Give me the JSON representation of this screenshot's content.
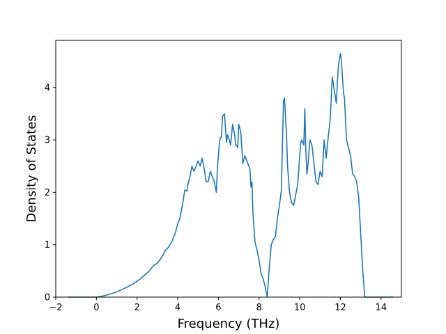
{
  "chart_data": {
    "type": "line",
    "title": "",
    "xlabel": "Frequency (THz)",
    "ylabel": "Density of States",
    "xlim": [
      -2.0,
      15.0
    ],
    "ylim": [
      0,
      4.9
    ],
    "xticks": [
      -2,
      0,
      2,
      4,
      6,
      8,
      10,
      12,
      14
    ],
    "yticks": [
      0,
      1,
      2,
      3,
      4
    ],
    "grid": false,
    "legend": "none",
    "color": "#1f77b4",
    "series": [
      {
        "x": [
          -1.4,
          -1.0,
          -0.5,
          0.0,
          0.3,
          0.6,
          1.0,
          1.4,
          1.8,
          2.2,
          2.6,
          2.8,
          3.0,
          3.2,
          3.4,
          3.5,
          3.7,
          3.8,
          3.9,
          4.0,
          4.1,
          4.15,
          4.25,
          4.35,
          4.45,
          4.5,
          4.6,
          4.7,
          4.8,
          4.9,
          5.0,
          5.1,
          5.2,
          5.3,
          5.4,
          5.5,
          5.6,
          5.7,
          5.8,
          5.9,
          5.95,
          6.0,
          6.05,
          6.1,
          6.15,
          6.2,
          6.3,
          6.4,
          6.45,
          6.5,
          6.6,
          6.7,
          6.8,
          6.85,
          6.9,
          6.95,
          7.0,
          7.1,
          7.2,
          7.3,
          7.4,
          7.5,
          7.55,
          7.6,
          7.65,
          7.7,
          7.8,
          7.9,
          8.0,
          8.1,
          8.2,
          8.3,
          8.4,
          8.5,
          8.6,
          8.7,
          8.8,
          8.9,
          9.0,
          9.1,
          9.2,
          9.25,
          9.35,
          9.4,
          9.5,
          9.6,
          9.7,
          9.8,
          9.9,
          10.0,
          10.05,
          10.1,
          10.2,
          10.25,
          10.3,
          10.35,
          10.4,
          10.5,
          10.6,
          10.7,
          10.8,
          10.9,
          11.0,
          11.1,
          11.2,
          11.3,
          11.4,
          11.5,
          11.6,
          11.7,
          11.8,
          11.85,
          11.9,
          11.95,
          12.0,
          12.05,
          12.1,
          12.15,
          12.2,
          12.3,
          12.4,
          12.5,
          12.6,
          12.7,
          12.8,
          12.9,
          13.0,
          13.1,
          13.2,
          13.3,
          13.6,
          14.0,
          14.6
        ],
        "values": [
          0.0,
          0.0,
          0.0,
          0.0,
          0.02,
          0.05,
          0.1,
          0.17,
          0.25,
          0.36,
          0.5,
          0.6,
          0.65,
          0.75,
          0.9,
          0.93,
          1.05,
          1.15,
          1.25,
          1.4,
          1.5,
          1.6,
          1.8,
          2.05,
          2.02,
          2.15,
          2.3,
          2.5,
          2.4,
          2.5,
          2.6,
          2.5,
          2.65,
          2.45,
          2.2,
          2.2,
          2.4,
          2.3,
          2.2,
          2.0,
          2.45,
          2.7,
          2.95,
          3.05,
          3.05,
          3.45,
          3.5,
          2.95,
          3.1,
          3.05,
          2.9,
          3.3,
          3.1,
          2.9,
          2.9,
          2.85,
          3.3,
          3.15,
          2.55,
          2.7,
          2.6,
          2.5,
          2.45,
          2.1,
          2.2,
          1.6,
          1.05,
          0.9,
          0.7,
          0.45,
          0.35,
          0.2,
          0.0,
          0.55,
          1.0,
          1.1,
          1.15,
          1.5,
          1.75,
          2.05,
          3.75,
          3.8,
          3.1,
          2.5,
          2.0,
          1.8,
          1.75,
          1.95,
          2.15,
          2.7,
          2.95,
          3.0,
          2.9,
          3.6,
          2.8,
          2.35,
          2.5,
          3.0,
          2.9,
          2.55,
          2.2,
          2.15,
          2.4,
          2.3,
          3.0,
          2.65,
          3.05,
          3.4,
          4.2,
          3.95,
          3.7,
          4.1,
          4.4,
          4.55,
          4.65,
          4.5,
          4.2,
          3.9,
          3.8,
          3.0,
          2.85,
          2.7,
          2.35,
          2.3,
          2.2,
          1.9,
          1.2,
          0.5,
          0.0,
          0.0,
          0.0,
          0.0,
          0.0
        ]
      }
    ]
  }
}
